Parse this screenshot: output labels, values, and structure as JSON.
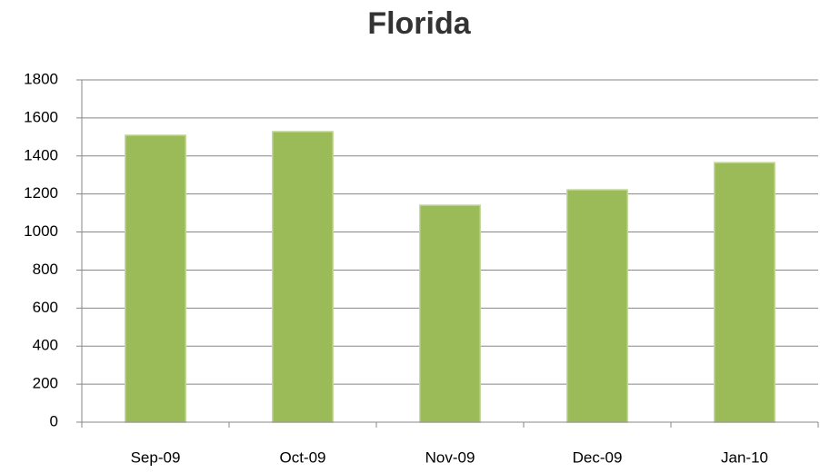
{
  "chart_data": {
    "type": "bar",
    "title": "Florida",
    "categories": [
      "Sep-09",
      "Oct-09",
      "Nov-09",
      "Dec-09",
      "Jan-10"
    ],
    "values": [
      1509,
      1528,
      1141,
      1222,
      1365
    ],
    "color": "#9bbb59",
    "ylim": [
      0,
      1800
    ],
    "yticks": [
      0,
      200,
      400,
      600,
      800,
      1000,
      1200,
      1400,
      1600,
      1800
    ],
    "grid": true
  }
}
